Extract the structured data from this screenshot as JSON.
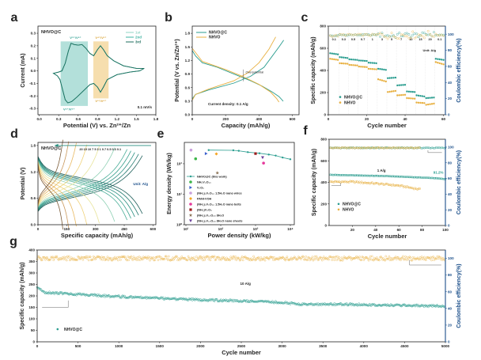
{
  "chart_data": [
    {
      "panel": "a",
      "type": "line",
      "xlabel": "Potential (V) vs. Zn²⁺/Zn",
      "ylabel": "Current  (mA)",
      "xlim": [
        -0.02,
        1.8
      ],
      "ylim": [
        -0.35,
        0.357
      ],
      "xticks": [
        0,
        0.3,
        0.6,
        0.9,
        1.2,
        1.5,
        1.8
      ],
      "xtick_labels": [
        "0.0",
        "0.3",
        "0.6",
        "0.9",
        "1.2",
        "1.5",
        "1.8"
      ],
      "yticks": [
        -0.3,
        -0.2,
        -0.1,
        0,
        0.1,
        0.2,
        0.3
      ],
      "ytick_labels": [
        "-0.3",
        "-0.2",
        "-0.1",
        "0.0",
        "0.1",
        "0.2",
        "0.3"
      ],
      "series": [
        {
          "name": "1st",
          "color": "#8fd4c4"
        },
        {
          "name": "2nd",
          "color": "#3bb3a0"
        },
        {
          "name": "3rd",
          "color": "#1e6e5e"
        }
      ],
      "cv_points": [
        [
          0.22,
          -0.02
        ],
        [
          0.3,
          -0.01
        ],
        [
          0.35,
          0.0
        ],
        [
          0.4,
          0.06
        ],
        [
          0.45,
          0.16
        ],
        [
          0.49,
          0.22
        ],
        [
          0.54,
          0.21
        ],
        [
          0.6,
          0.205
        ],
        [
          0.66,
          0.21
        ],
        [
          0.72,
          0.18
        ],
        [
          0.78,
          0.14
        ],
        [
          0.84,
          0.12
        ],
        [
          0.9,
          0.17
        ],
        [
          0.945,
          0.2
        ],
        [
          0.99,
          0.17
        ],
        [
          1.05,
          0.12
        ],
        [
          1.15,
          0.08
        ],
        [
          1.3,
          0.04
        ],
        [
          1.5,
          0.02
        ],
        [
          1.62,
          0.02
        ],
        [
          1.55,
          0.0
        ],
        [
          1.4,
          -0.01
        ],
        [
          1.2,
          -0.03
        ],
        [
          1.05,
          -0.07
        ],
        [
          0.99,
          -0.13
        ],
        [
          0.945,
          -0.17
        ],
        [
          0.9,
          -0.13
        ],
        [
          0.84,
          -0.1
        ],
        [
          0.78,
          -0.11
        ],
        [
          0.68,
          -0.16
        ],
        [
          0.58,
          -0.21
        ],
        [
          0.5,
          -0.245
        ],
        [
          0.44,
          -0.255
        ],
        [
          0.4,
          -0.23
        ],
        [
          0.36,
          -0.15
        ],
        [
          0.32,
          -0.07
        ],
        [
          0.28,
          -0.04
        ],
        [
          0.22,
          -0.02
        ]
      ],
      "regions": [
        {
          "x": [
            0.33,
            0.75
          ],
          "y": [
            -0.28,
            0.235
          ],
          "color": "#a6dbd4"
        },
        {
          "x": [
            0.835,
            1.07
          ],
          "y": [
            -0.22,
            0.235
          ],
          "color": "#f4d8a0"
        }
      ],
      "annotations": {
        "sample": "NHVO@C",
        "ox1": "V⁵⁺/V⁴⁺",
        "ox2": "V⁴⁺/V³⁺",
        "red1": "V⁴⁺/V⁵⁺",
        "red2": "V³⁺/V⁴⁺",
        "scan_rate": "0.1 mV/s"
      }
    },
    {
      "panel": "b",
      "type": "line",
      "xlabel": "Capacity (mAh/g)",
      "ylabel": "Potential (V vs. Zn/Zn²⁺)",
      "xlim": [
        0,
        640
      ],
      "ylim": [
        0,
        1.96
      ],
      "xticks": [
        0,
        200,
        400,
        600
      ],
      "xtick_labels": [
        "0",
        "200",
        "400",
        "600"
      ],
      "yticks": [
        0,
        0.3,
        0.6,
        0.9,
        1.2,
        1.5,
        1.8
      ],
      "ytick_labels": [
        "0.0",
        "0.3",
        "0.6",
        "0.9",
        "1.2",
        "1.5",
        "1.8"
      ],
      "series": [
        {
          "name": "NHVO@C",
          "color": "#2a9d8f",
          "discharge": [
            [
              0,
              1.42
            ],
            [
              20,
              1.3
            ],
            [
              60,
              1.15
            ],
            [
              150,
              1.05
            ],
            [
              250,
              0.9
            ],
            [
              350,
              0.75
            ],
            [
              420,
              0.63
            ],
            [
              480,
              0.5
            ],
            [
              520,
              0.4
            ],
            [
              545,
              0.3
            ]
          ],
          "charge": [
            [
              0,
              0.35
            ],
            [
              20,
              0.45
            ],
            [
              100,
              0.55
            ],
            [
              250,
              0.7
            ],
            [
              350,
              0.85
            ],
            [
              430,
              1.05
            ],
            [
              480,
              1.3
            ],
            [
              520,
              1.5
            ],
            [
              548,
              1.65
            ]
          ]
        },
        {
          "name": "NHVO",
          "color": "#e8b040",
          "discharge": [
            [
              0,
              1.47
            ],
            [
              60,
              1.18
            ],
            [
              200,
              1.0
            ],
            [
              300,
              0.85
            ],
            [
              400,
              0.67
            ],
            [
              470,
              0.5
            ],
            [
              505,
              0.36
            ],
            [
              520,
              0.28
            ]
          ],
          "charge": [
            [
              0,
              0.32
            ],
            [
              20,
              0.45
            ],
            [
              100,
              0.57
            ],
            [
              250,
              0.75
            ],
            [
              330,
              0.92
            ],
            [
              400,
              1.15
            ],
            [
              460,
              1.45
            ],
            [
              500,
              1.72
            ]
          ]
        }
      ],
      "annotations": {
        "overpotential": "Overpotential",
        "current_density": "Current density: 0.1 A/g"
      }
    },
    {
      "panel": "c",
      "type": "scatter",
      "xlabel": "Cycle number",
      "ylabel": "Specific capacity (mAh/g)",
      "y2label": "Coulombic efficiency(%)",
      "xlim": [
        0,
        61
      ],
      "ylim": [
        0,
        800
      ],
      "y2lim": [
        0,
        110
      ],
      "xticks": [
        0,
        20,
        40,
        60
      ],
      "xtick_labels": [
        "0",
        "20",
        "40",
        "60"
      ],
      "yticks": [
        0,
        200,
        400,
        600,
        800
      ],
      "ytick_labels": [
        "0",
        "200",
        "400",
        "600",
        "800"
      ],
      "y2ticks": [
        0,
        20,
        40,
        60,
        80,
        100
      ],
      "y2tick_labels": [
        "0",
        "20",
        "40",
        "60",
        "80",
        "100"
      ],
      "steps": [
        {
          "rate": "0.1",
          "nhvoc": [
            555,
            545
          ],
          "nhvo": [
            505,
            495
          ],
          "ce": 98
        },
        {
          "rate": "0.3",
          "nhvoc": [
            520,
            512
          ],
          "nhvo": [
            465,
            460
          ],
          "ce": 99
        },
        {
          "rate": "0.5",
          "nhvoc": [
            500,
            495
          ],
          "nhvo": [
            450,
            445
          ],
          "ce": 99
        },
        {
          "rate": "0.7",
          "nhvoc": [
            490,
            485
          ],
          "nhvo": [
            435,
            430
          ],
          "ce": 99
        },
        {
          "rate": "1",
          "nhvoc": [
            470,
            465
          ],
          "nhvo": [
            415,
            410
          ],
          "ce": 99
        },
        {
          "rate": "3",
          "nhvoc": [
            415,
            405
          ],
          "nhvo": [
            320,
            300
          ],
          "ce": 99
        },
        {
          "rate": "5",
          "nhvoc": [
            330,
            335
          ],
          "nhvo": [
            205,
            215
          ],
          "ce": 98
        },
        {
          "rate": "7",
          "nhvoc": [
            265,
            270
          ],
          "nhvo": [
            175,
            180
          ],
          "ce": 99
        },
        {
          "rate": "10",
          "nhvoc": [
            210,
            205
          ],
          "nhvo": [
            150,
            145
          ],
          "ce": 99
        },
        {
          "rate": "15",
          "nhvoc": [
            175,
            165
          ],
          "nhvo": [
            110,
            105
          ],
          "ce": 99
        },
        {
          "rate": "20",
          "nhvoc": [
            150,
            155
          ],
          "nhvo": [
            90,
            100
          ],
          "ce": 100
        },
        {
          "rate": "0.1",
          "nhvoc": [
            505,
            495
          ],
          "nhvo": [
            475,
            455
          ],
          "ce": 99
        }
      ],
      "legend": [
        "NHVO@C",
        "NHVO"
      ],
      "colors": {
        "nhvoc": "#2a9d8f",
        "nhvo": "#e8b040",
        "ce_axis": "#1b4f8a"
      },
      "annotations": {
        "unit": "Unit: A/g"
      }
    },
    {
      "panel": "d",
      "type": "line",
      "xlabel": "Specific capacity (mAh/g)",
      "ylabel": "Potential (V)",
      "xlim": [
        0,
        615
      ],
      "ylim": [
        0,
        1.87
      ],
      "xticks": [
        0,
        150,
        300,
        450,
        600
      ],
      "xtick_labels": [
        "0",
        "150",
        "300",
        "450",
        "600"
      ],
      "yticks": [
        0,
        0.6,
        1.2,
        1.8
      ],
      "ytick_labels": [
        "0.0",
        "0.6",
        "1.2",
        "1.8"
      ],
      "rates": [
        "0.1",
        "0.3",
        "0.5",
        "0.7",
        "1",
        "3",
        "5",
        "7",
        "10",
        "15",
        "20"
      ],
      "capacities": [
        545,
        525,
        505,
        485,
        465,
        400,
        320,
        255,
        200,
        160,
        130
      ],
      "colors": [
        "#1e5f5a",
        "#237a70",
        "#2a8f80",
        "#379f8c",
        "#4aae98",
        "#8fd0b4",
        "#e8e49a",
        "#f0d27a",
        "#e8b860",
        "#c9975a",
        "#7a5a36"
      ],
      "annotations": {
        "sample": "NHVO@C",
        "unit": "Unit: A/g",
        "rate_labels": "20 15 10 7 5 3 1 0.7 0.5 0.3 0.1"
      }
    },
    {
      "panel": "e",
      "type": "scatter",
      "xlabel": "Power density (kW/kg)",
      "ylabel": "Energy density (Wh/kg)",
      "xlog": true,
      "ylog": true,
      "xlim": [
        9,
        13000
      ],
      "ylim": [
        1,
        500
      ],
      "xticks": [
        10,
        100,
        1000,
        10000
      ],
      "xtick_labels": [
        "10¹",
        "10²",
        "10³",
        "10⁴"
      ],
      "yticks": [
        1,
        10,
        100
      ],
      "ytick_labels": [
        "10⁰",
        "10¹",
        "10²"
      ],
      "series": [
        {
          "name": "NHVO@C (this work)",
          "color": "#2a9d8f",
          "marker": "line-triangle",
          "points": [
            [
              45,
              280
            ],
            [
              230,
              275
            ],
            [
              330,
              265
            ],
            [
              600,
              240
            ],
            [
              1300,
              220
            ],
            [
              2400,
              200
            ],
            [
              3800,
              185
            ],
            [
              6000,
              160
            ],
            [
              10000,
              140
            ]
          ]
        },
        {
          "name": "NH₄V₄O₁₀",
          "color": "#3cb54a",
          "marker": "circle",
          "points": [
            [
              19,
              145
            ]
          ]
        },
        {
          "name": "V₂O₅",
          "color": "#3a5fcd",
          "marker": "triangle-right",
          "points": [
            [
              38,
              215
            ]
          ]
        },
        {
          "name": "(NH₄)₂V₆O₁₆ 1.5H₂O nano wires",
          "color": "#c9a0dc",
          "marker": "circle",
          "points": [
            [
              14,
              280
            ]
          ]
        },
        {
          "name": "PANI-VOH",
          "color": "#f5a623",
          "marker": "diamond",
          "points": [
            [
              75,
              210
            ]
          ]
        },
        {
          "name": "(NH₄)₂V₆O₁₆ 1.5H₂O nano belts",
          "color": "#e6399b",
          "marker": "circle",
          "points": [
            [
              1700,
              105
            ]
          ]
        },
        {
          "name": "(NH₄)V₃O₈",
          "color": "#9b1b1b",
          "marker": "square",
          "points": [
            [
              1000,
              215
            ]
          ]
        },
        {
          "name": "(NH₄)₂V₁₀O₂₅ 8H₂O",
          "color": "#8b7355",
          "marker": "star",
          "points": [
            [
              80,
              50
            ]
          ]
        },
        {
          "name": "(NH₄)₂V₁₀O₂₅ 8H₂O nano sheets",
          "color": "#6a3d9a",
          "marker": "triangle-down",
          "points": [
            [
              1600,
              160
            ]
          ]
        }
      ]
    },
    {
      "panel": "f",
      "type": "scatter",
      "xlabel": "Cycle number",
      "ylabel": "Specific capacity (mAh/g)",
      "y2label": "Coulombic efficiency(%)",
      "xlim": [
        0,
        100
      ],
      "ylim": [
        0,
        800
      ],
      "y2lim": [
        0,
        110
      ],
      "xticks": [
        20,
        40,
        60,
        80,
        100
      ],
      "xtick_labels": [
        "20",
        "40",
        "60",
        "80",
        "100"
      ],
      "yticks": [
        0,
        200,
        400,
        600,
        800
      ],
      "ytick_labels": [
        "0",
        "200",
        "400",
        "600",
        "800"
      ],
      "y2ticks": [
        0,
        20,
        40,
        60,
        80,
        100
      ],
      "y2tick_labels": [
        "0",
        "20",
        "40",
        "60",
        "80",
        "100"
      ],
      "series": [
        {
          "name": "NHVO@C",
          "color": "#2a9d8f",
          "cycles": 100,
          "capacity_trend": [
            [
              1,
              470
            ],
            [
              50,
              458
            ],
            [
              90,
              440
            ],
            [
              100,
              430
            ]
          ],
          "ce": 99
        },
        {
          "name": "NHVO",
          "color": "#e8b040",
          "cycles": 78,
          "capacity_trend": [
            [
              1,
              405
            ],
            [
              20,
              405
            ],
            [
              40,
              390
            ],
            [
              60,
              370
            ],
            [
              78,
              335
            ]
          ],
          "ce": 99
        }
      ],
      "colors": {
        "ce_axis": "#1b4f8a"
      },
      "annotations": {
        "current": "1 A/g",
        "retention": "91.2%"
      }
    },
    {
      "panel": "g",
      "type": "scatter",
      "xlabel": "Cycle number",
      "ylabel": "Specific capacity (mAh/g)",
      "y2label": "Coulombic efficiency(%)",
      "xlim": [
        0,
        5000
      ],
      "ylim": [
        0,
        400
      ],
      "y2lim": [
        0,
        110
      ],
      "xticks": [
        0,
        500,
        1000,
        1500,
        2000,
        2500,
        3000,
        3500,
        4000,
        4500,
        5000
      ],
      "xtick_labels": [
        "0",
        "500",
        "1000",
        "1500",
        "2000",
        "2500",
        "3000",
        "3500",
        "4000",
        "4500",
        "5000"
      ],
      "yticks": [
        0,
        50,
        100,
        150,
        200,
        250,
        300,
        350,
        400
      ],
      "ytick_labels": [
        "0",
        "50",
        "100",
        "150",
        "200",
        "250",
        "300",
        "350",
        "400"
      ],
      "y2ticks": [
        0,
        20,
        40,
        60,
        80,
        100
      ],
      "y2tick_labels": [
        "0",
        "20",
        "40",
        "60",
        "80",
        "100"
      ],
      "series": [
        {
          "name": "NHVO@C",
          "color": "#2a9d8f",
          "capacity_trend": [
            [
              1,
              235
            ],
            [
              100,
              215
            ],
            [
              500,
              207
            ],
            [
              1000,
              197
            ],
            [
              1500,
              190
            ],
            [
              2000,
              183
            ],
            [
              2500,
              178
            ],
            [
              3000,
              172
            ],
            [
              3200,
              164
            ],
            [
              4000,
              162
            ],
            [
              5000,
              155
            ]
          ],
          "ce_color": "#e8b040",
          "ce": 100
        }
      ],
      "colors": {
        "ce_axis": "#1b4f8a"
      },
      "annotations": {
        "current": "10 A/g"
      }
    }
  ]
}
